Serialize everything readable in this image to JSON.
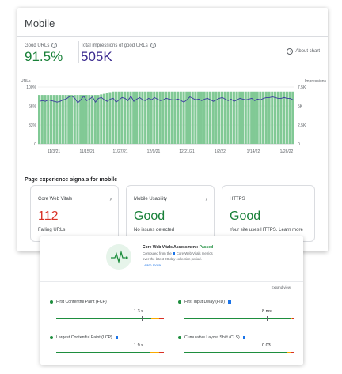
{
  "card": {
    "title": "Mobile",
    "good_urls": {
      "label": "Good URLs",
      "value": "91.5%",
      "color": "#188038"
    },
    "impressions": {
      "label": "Total impressions of good URLs",
      "value": "505K",
      "color": "#3b2b8f"
    },
    "about_chart": "About chart"
  },
  "chart_data": {
    "type": "bar",
    "left_axis": {
      "label": "URLs",
      "ticks": [
        "100%",
        "66%",
        "33%",
        "0"
      ]
    },
    "right_axis": {
      "label": "Impressions",
      "ticks": [
        "7.5K",
        "5K",
        "2.5K",
        "0"
      ]
    },
    "x_ticks": [
      "11/3/21",
      "11/15/21",
      "11/27/21",
      "12/9/21",
      "12/21/21",
      "1/2/22",
      "1/14/22",
      "1/26/22"
    ],
    "bar_color": "#81c995",
    "line_color": "#3c3c9e",
    "bar_pct_note": "good URLs percentage per day",
    "bars": [
      86,
      86,
      86,
      86,
      86,
      86,
      86,
      86,
      86,
      86,
      86,
      86,
      86,
      86,
      86,
      86,
      86,
      86,
      86,
      86,
      86,
      87,
      88,
      89,
      91,
      92,
      92,
      92,
      92,
      92,
      92,
      92,
      92,
      92,
      92,
      92,
      92,
      92,
      92,
      92,
      92,
      92,
      92,
      92,
      92,
      92,
      92,
      92,
      92,
      92,
      92,
      92,
      92,
      92,
      92,
      92,
      92,
      92,
      92,
      92,
      92,
      92,
      92,
      92,
      92,
      92,
      92,
      92,
      92,
      92,
      92,
      92,
      92,
      92,
      92,
      92,
      92,
      92,
      92,
      92,
      92,
      92,
      92,
      92,
      92,
      92,
      92
    ],
    "line": [
      5.6,
      5.7,
      5.6,
      5.8,
      5.7,
      5.6,
      5.5,
      5.6,
      5.8,
      5.9,
      6.2,
      6.3,
      6.0,
      5.4,
      5.8,
      6.3,
      5.7,
      5.9,
      6.2,
      5.5,
      6.0,
      6.1,
      5.8,
      5.6,
      5.9,
      6.0,
      5.5,
      5.8,
      6.1,
      6.0,
      5.7,
      6.3,
      5.6,
      5.9,
      6.1,
      5.8,
      5.7,
      6.0,
      5.8,
      6.1,
      5.9,
      5.7,
      5.8,
      6.0,
      5.9,
      5.8,
      5.8,
      5.9,
      5.7,
      5.5,
      5.8,
      6.2,
      6.0,
      5.8,
      5.9,
      5.7,
      5.9,
      6.0,
      5.8,
      5.6,
      5.8,
      6.0,
      6.1,
      5.9,
      5.7,
      5.9,
      5.6,
      5.8,
      6.0,
      5.9,
      5.8,
      5.9,
      6.0,
      5.7,
      5.9,
      5.8,
      6.0,
      6.1,
      6.1,
      6.2,
      6.1,
      6.0,
      6.0,
      6.1,
      6.0,
      6.0,
      5.8
    ]
  },
  "section_title": "Page experience signals for mobile",
  "cards": {
    "cwv": {
      "title": "Core Web Vitals",
      "value": "112",
      "sub": "Failing URLs",
      "color": "#d93025"
    },
    "mobile": {
      "title": "Mobile Usability",
      "value": "Good",
      "sub": "No issues detected",
      "color": "#188038"
    },
    "https": {
      "title": "HTTPS",
      "value": "Good",
      "sub": "Your site uses HTTPS.",
      "link": "Learn more",
      "color": "#188038"
    }
  },
  "assessment": {
    "title_prefix": "Core Web Vitals Assessment:",
    "title_status": "Passed",
    "desc1": "Computed from the",
    "desc2": "Core Web Vitals metrics",
    "desc3": "over the latest 28-day collection period.",
    "learn": "Learn more",
    "expand": "Expand view",
    "metrics": [
      {
        "name": "First Contentful Paint (FCP)",
        "value": "1.3 s",
        "core": false
      },
      {
        "name": "First Input Delay (FID)",
        "value": "8 ms",
        "core": true
      },
      {
        "name": "Largest Contentful Paint (LCP)",
        "value": "1.9 s",
        "core": true
      },
      {
        "name": "Cumulative Layout Shift (CLS)",
        "value": "0.03",
        "core": true
      }
    ]
  }
}
